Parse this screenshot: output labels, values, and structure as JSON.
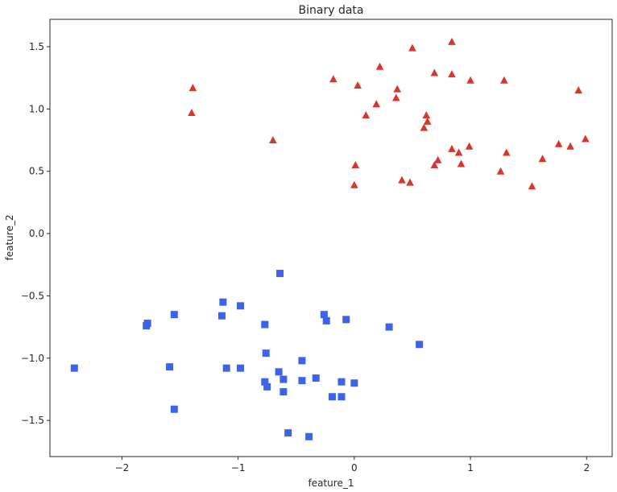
{
  "chart_data": {
    "type": "scatter",
    "title": "Binary data",
    "xlabel": "feature_1",
    "ylabel": "feature_2",
    "xlim": [
      -2.62,
      2.22
    ],
    "ylim": [
      -1.79,
      1.72
    ],
    "grid": false,
    "xticks": [
      -2,
      -1,
      0,
      1,
      2
    ],
    "yticks": [
      -1.5,
      -1.0,
      -0.5,
      0.0,
      0.5,
      1.0,
      1.5
    ],
    "xtick_labels": [
      "−2",
      "−1",
      "0",
      "1",
      "2"
    ],
    "ytick_labels": [
      "−1.5",
      "−1.0",
      "−0.5",
      "0.0",
      "0.5",
      "1.0",
      "1.5"
    ],
    "series": [
      {
        "marker": "triangle",
        "color": "#d9362b",
        "points": [
          [
            -1.39,
            1.17
          ],
          [
            -1.4,
            0.97
          ],
          [
            -0.7,
            0.75
          ],
          [
            -0.18,
            1.24
          ],
          [
            0.03,
            1.19
          ],
          [
            0.1,
            0.95
          ],
          [
            0.19,
            1.04
          ],
          [
            0.22,
            1.34
          ],
          [
            0.36,
            1.09
          ],
          [
            0.37,
            1.16
          ],
          [
            0.5,
            1.49
          ],
          [
            0.69,
            1.29
          ],
          [
            0.84,
            1.54
          ],
          [
            0.84,
            1.28
          ],
          [
            1.0,
            1.23
          ],
          [
            1.29,
            1.23
          ],
          [
            1.93,
            1.15
          ],
          [
            0.6,
            0.85
          ],
          [
            0.62,
            0.95
          ],
          [
            0.63,
            0.9
          ],
          [
            0.01,
            0.55
          ],
          [
            0.0,
            0.39
          ],
          [
            0.41,
            0.43
          ],
          [
            0.48,
            0.41
          ],
          [
            0.69,
            0.55
          ],
          [
            0.72,
            0.59
          ],
          [
            0.84,
            0.68
          ],
          [
            0.9,
            0.65
          ],
          [
            0.92,
            0.56
          ],
          [
            0.99,
            0.7
          ],
          [
            1.26,
            0.5
          ],
          [
            1.31,
            0.65
          ],
          [
            1.53,
            0.38
          ],
          [
            1.62,
            0.6
          ],
          [
            1.76,
            0.72
          ],
          [
            1.86,
            0.7
          ],
          [
            1.99,
            0.76
          ]
        ]
      },
      {
        "marker": "square",
        "color": "#3d63ea",
        "points": [
          [
            -2.41,
            -1.08
          ],
          [
            -1.79,
            -0.74
          ],
          [
            -1.78,
            -0.72
          ],
          [
            -1.55,
            -0.65
          ],
          [
            -1.59,
            -1.07
          ],
          [
            -1.55,
            -1.41
          ],
          [
            -1.13,
            -0.55
          ],
          [
            -1.14,
            -0.66
          ],
          [
            -1.1,
            -1.08
          ],
          [
            -0.98,
            -0.58
          ],
          [
            -0.98,
            -1.08
          ],
          [
            -0.77,
            -0.73
          ],
          [
            -0.76,
            -0.96
          ],
          [
            -0.77,
            -1.19
          ],
          [
            -0.75,
            -1.23
          ],
          [
            -0.65,
            -1.11
          ],
          [
            -0.64,
            -0.32
          ],
          [
            -0.61,
            -1.17
          ],
          [
            -0.61,
            -1.27
          ],
          [
            -0.57,
            -1.6
          ],
          [
            -0.45,
            -1.02
          ],
          [
            -0.45,
            -1.18
          ],
          [
            -0.39,
            -1.63
          ],
          [
            -0.33,
            -1.16
          ],
          [
            -0.26,
            -0.65
          ],
          [
            -0.24,
            -0.7
          ],
          [
            -0.19,
            -1.31
          ],
          [
            -0.11,
            -1.19
          ],
          [
            -0.11,
            -1.31
          ],
          [
            -0.07,
            -0.69
          ],
          [
            0.0,
            -1.2
          ],
          [
            0.3,
            -0.75
          ],
          [
            0.56,
            -0.89
          ]
        ]
      }
    ]
  }
}
